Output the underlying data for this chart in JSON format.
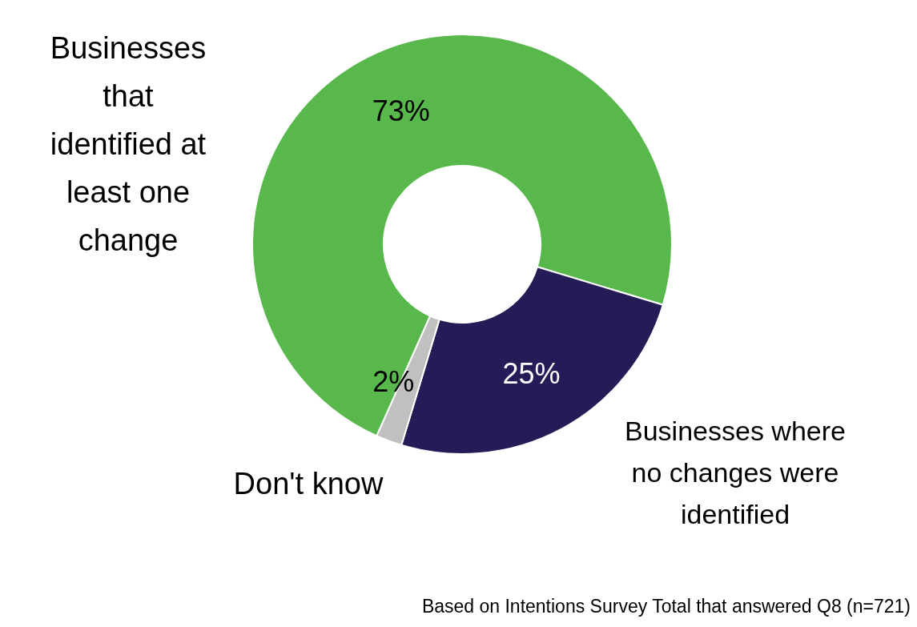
{
  "chart_data": {
    "type": "donut",
    "categories": [
      "Businesses that identified at least one change",
      "Businesses where no changes were identified",
      "Don't know"
    ],
    "values": [
      73,
      25,
      2
    ],
    "colors": [
      "#58b84c",
      "#231c56",
      "#c0c0c0"
    ],
    "value_labels": [
      "73%",
      "25%",
      "2%"
    ],
    "annotations": [
      "Based on Intentions Survey Total that answered Q8 (n=721)"
    ]
  }
}
